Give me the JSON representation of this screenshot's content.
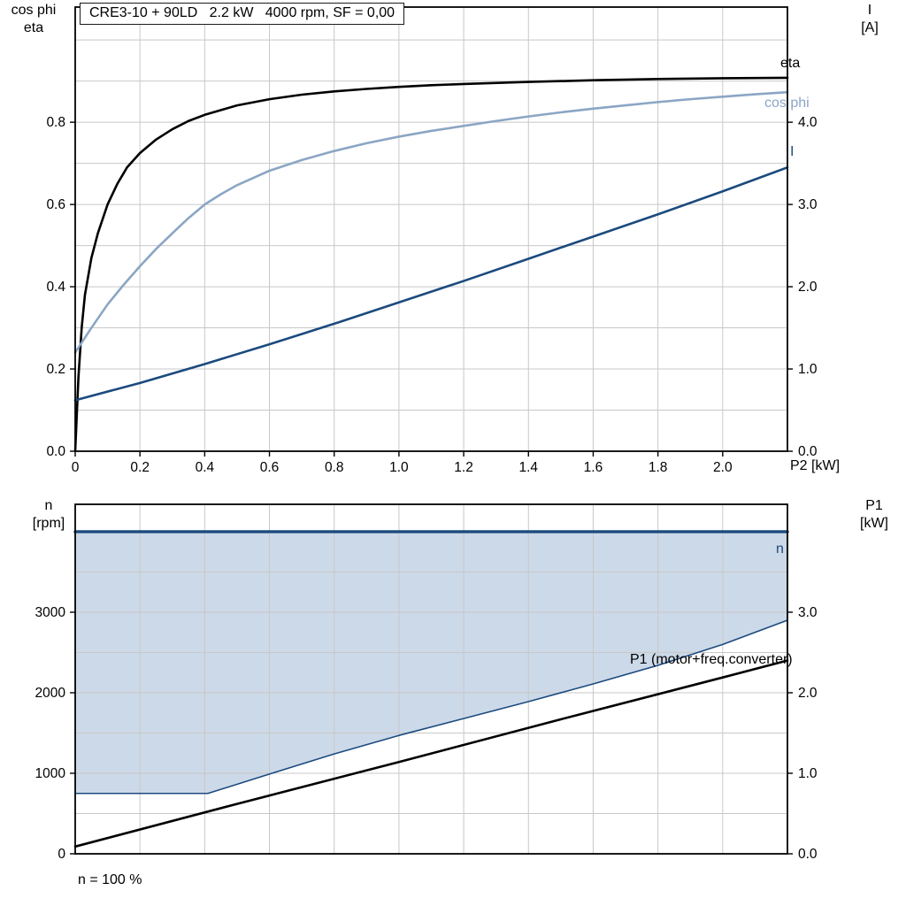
{
  "title_box": {
    "text": "CRE3-10 + 90LD   2.2 kW   4000 rpm, SF = 0,00"
  },
  "labels": {
    "top_left_line1": "cos phi",
    "top_left_line2": "eta",
    "top_right_line1": "I",
    "top_right_line2": "[A]",
    "x_axis_label_top": "P2 [kW]",
    "eta_curve": "eta",
    "cos_phi_curve": "cos phi",
    "current_curve": "I",
    "bottom_left_line1": "n",
    "bottom_left_line2": "[rpm]",
    "bottom_right_line1": "P1",
    "bottom_right_line2": "[kW]",
    "n_curve": "n",
    "p1_curve": "P1 (motor+freq.converter)",
    "footnote": "n = 100 %"
  },
  "colors": {
    "grid": "#c8c8c8",
    "frame": "#000000",
    "eta": "#000000",
    "cos_phi": "#8ba6c4",
    "current": "#1b4a7e",
    "speed": "#1b4a7e",
    "p1": "#000000",
    "area": "#ccd9e8"
  },
  "chart_data": [
    {
      "type": "line",
      "title": "CRE3-10 + 90LD   2.2 kW   4000 rpm, SF = 0,00",
      "x_axis": {
        "label": "P2 [kW]",
        "min": 0,
        "max": 2.2,
        "grid_step": 0.2,
        "ticks": [
          {
            "v": 0,
            "label": "0"
          },
          {
            "v": 0.2,
            "label": "0.2"
          },
          {
            "v": 0.4,
            "label": "0.4"
          },
          {
            "v": 0.6,
            "label": "0.6"
          },
          {
            "v": 0.8,
            "label": "0.8"
          },
          {
            "v": 1.0,
            "label": "1.0"
          },
          {
            "v": 1.2,
            "label": "1.2"
          },
          {
            "v": 1.4,
            "label": "1.4"
          },
          {
            "v": 1.6,
            "label": "1.6"
          },
          {
            "v": 1.8,
            "label": "1.8"
          },
          {
            "v": 2.0,
            "label": "2.0"
          }
        ]
      },
      "y_left": {
        "label": "cos phi / eta",
        "min": 0,
        "max": 1.08,
        "grid_step": 0.1,
        "ticks": [
          {
            "v": 0.0,
            "label": "0.0"
          },
          {
            "v": 0.2,
            "label": "0.2"
          },
          {
            "v": 0.4,
            "label": "0.4"
          },
          {
            "v": 0.6,
            "label": "0.6"
          },
          {
            "v": 0.8,
            "label": "0.8"
          }
        ]
      },
      "y_right": {
        "label": "I [A]",
        "min": 0,
        "max": 5.4,
        "ticks": [
          {
            "v": 0.0,
            "label": "0.0"
          },
          {
            "v": 1.0,
            "label": "1.0"
          },
          {
            "v": 2.0,
            "label": "2.0"
          },
          {
            "v": 3.0,
            "label": "3.0"
          },
          {
            "v": 4.0,
            "label": "4.0"
          }
        ]
      },
      "series": [
        {
          "name": "eta",
          "axis": "left",
          "color": "#000000",
          "width": 2.6,
          "points": [
            [
              0,
              0
            ],
            [
              0.01,
              0.18
            ],
            [
              0.02,
              0.3
            ],
            [
              0.03,
              0.38
            ],
            [
              0.05,
              0.47
            ],
            [
              0.07,
              0.53
            ],
            [
              0.1,
              0.6
            ],
            [
              0.13,
              0.65
            ],
            [
              0.16,
              0.69
            ],
            [
              0.2,
              0.725
            ],
            [
              0.25,
              0.758
            ],
            [
              0.3,
              0.783
            ],
            [
              0.35,
              0.803
            ],
            [
              0.4,
              0.818
            ],
            [
              0.5,
              0.841
            ],
            [
              0.6,
              0.856
            ],
            [
              0.7,
              0.867
            ],
            [
              0.8,
              0.875
            ],
            [
              0.9,
              0.881
            ],
            [
              1.0,
              0.886
            ],
            [
              1.1,
              0.89
            ],
            [
              1.2,
              0.893
            ],
            [
              1.4,
              0.898
            ],
            [
              1.6,
              0.902
            ],
            [
              1.8,
              0.905
            ],
            [
              2.0,
              0.907
            ],
            [
              2.2,
              0.908
            ]
          ]
        },
        {
          "name": "cos phi",
          "axis": "left",
          "color": "#8ba6c4",
          "width": 2.6,
          "points": [
            [
              0,
              0.24
            ],
            [
              0.05,
              0.3
            ],
            [
              0.1,
              0.357
            ],
            [
              0.15,
              0.405
            ],
            [
              0.2,
              0.45
            ],
            [
              0.25,
              0.492
            ],
            [
              0.3,
              0.53
            ],
            [
              0.35,
              0.567
            ],
            [
              0.4,
              0.6
            ],
            [
              0.45,
              0.625
            ],
            [
              0.5,
              0.647
            ],
            [
              0.6,
              0.682
            ],
            [
              0.7,
              0.708
            ],
            [
              0.8,
              0.73
            ],
            [
              0.9,
              0.749
            ],
            [
              1.0,
              0.765
            ],
            [
              1.1,
              0.779
            ],
            [
              1.2,
              0.791
            ],
            [
              1.3,
              0.803
            ],
            [
              1.4,
              0.814
            ],
            [
              1.5,
              0.824
            ],
            [
              1.6,
              0.833
            ],
            [
              1.7,
              0.841
            ],
            [
              1.8,
              0.849
            ],
            [
              1.9,
              0.856
            ],
            [
              2.0,
              0.862
            ],
            [
              2.1,
              0.868
            ],
            [
              2.2,
              0.873
            ]
          ]
        },
        {
          "name": "I",
          "axis": "right",
          "color": "#1b4a7e",
          "width": 2.6,
          "points": [
            [
              0,
              0.62
            ],
            [
              0.2,
              0.83
            ],
            [
              0.4,
              1.06
            ],
            [
              0.6,
              1.3
            ],
            [
              0.8,
              1.55
            ],
            [
              1.0,
              1.81
            ],
            [
              1.2,
              2.07
            ],
            [
              1.4,
              2.34
            ],
            [
              1.6,
              2.61
            ],
            [
              1.8,
              2.88
            ],
            [
              2.0,
              3.16
            ],
            [
              2.2,
              3.45
            ]
          ]
        }
      ]
    },
    {
      "type": "line+area",
      "x_axis": {
        "label": "",
        "min": 0,
        "max": 2.2,
        "grid_step": 0.2,
        "ticks": []
      },
      "y_left": {
        "label": "n [rpm]",
        "min": 0,
        "max": 4340,
        "grid_step": 500,
        "ticks": [
          {
            "v": 0,
            "label": "0"
          },
          {
            "v": 1000,
            "label": "1000"
          },
          {
            "v": 2000,
            "label": "2000"
          },
          {
            "v": 3000,
            "label": "3000"
          }
        ]
      },
      "y_right": {
        "label": "P1 [kW]",
        "min": 0,
        "max": 4.34,
        "ticks": [
          {
            "v": 0.0,
            "label": "0.0"
          },
          {
            "v": 1.0,
            "label": "1.0"
          },
          {
            "v": 2.0,
            "label": "2.0"
          },
          {
            "v": 3.0,
            "label": "3.0"
          }
        ]
      },
      "area": {
        "color": "#ccd9e8",
        "upper": 4000,
        "lower_points": [
          [
            0,
            750
          ],
          [
            0.41,
            750
          ],
          [
            0.6,
            990
          ],
          [
            0.8,
            1240
          ],
          [
            1.0,
            1470
          ],
          [
            1.2,
            1680
          ],
          [
            1.4,
            1890
          ],
          [
            1.6,
            2110
          ],
          [
            1.8,
            2340
          ],
          [
            2.0,
            2600
          ],
          [
            2.2,
            2900
          ]
        ]
      },
      "series": [
        {
          "name": "speed range lower",
          "axis": "left",
          "color": "#1b4a7e",
          "width": 1.6,
          "points": [
            [
              0,
              750
            ],
            [
              0.41,
              750
            ],
            [
              0.6,
              990
            ],
            [
              0.8,
              1240
            ],
            [
              1.0,
              1470
            ],
            [
              1.2,
              1680
            ],
            [
              1.4,
              1890
            ],
            [
              1.6,
              2110
            ],
            [
              1.8,
              2340
            ],
            [
              2.0,
              2600
            ],
            [
              2.2,
              2900
            ],
            [
              2.2,
              4000
            ]
          ]
        },
        {
          "name": "n",
          "axis": "left",
          "color": "#1b4a7e",
          "width": 3.4,
          "points": [
            [
              0,
              4000
            ],
            [
              2.2,
              4000
            ]
          ]
        },
        {
          "name": "P1 (motor+freq.converter)",
          "axis": "right",
          "color": "#000000",
          "width": 2.6,
          "points": [
            [
              0,
              0.09
            ],
            [
              0.5,
              0.62
            ],
            [
              1.0,
              1.14
            ],
            [
              1.5,
              1.67
            ],
            [
              2.0,
              2.19
            ],
            [
              2.2,
              2.4
            ]
          ]
        }
      ],
      "footnote": "n = 100 %"
    }
  ]
}
